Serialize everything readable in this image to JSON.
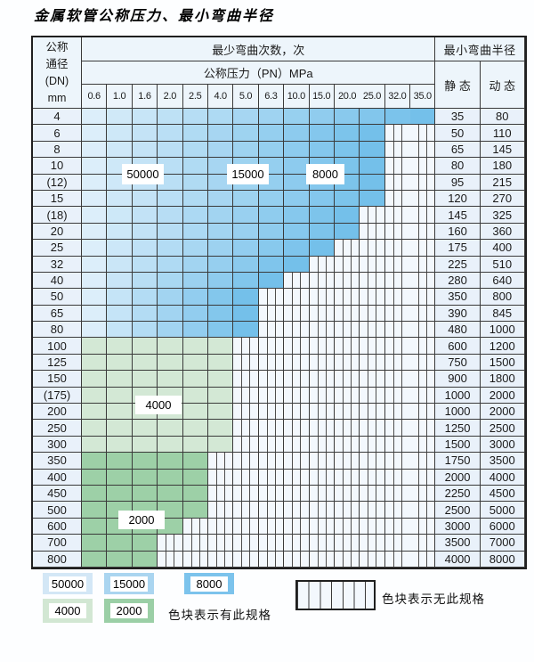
{
  "title": "金属软管公称压力、最小弯曲半径",
  "table": {
    "dn_header_lines": [
      "公称",
      "通径",
      "(DN)",
      "mm"
    ],
    "bend_cycles_header": "最少弯曲次数，次",
    "pressure_header": "公称压力（PN）MPa",
    "radius_header": "最小弯曲半径",
    "static_header": "静 态",
    "dynamic_header": "动 态",
    "pressure_columns": [
      "0.6",
      "1.0",
      "1.6",
      "2.0",
      "2.5",
      "4.0",
      "5.0",
      "6.3",
      "10.0",
      "15.0",
      "20.0",
      "25.0",
      "32.0",
      "35.0"
    ],
    "rows": [
      {
        "dn": "4",
        "band": "blue",
        "max_pn": "35.0",
        "colored_cols": 14,
        "static": "35",
        "dynamic": "80"
      },
      {
        "dn": "6",
        "band": "blue",
        "max_pn": "25.0",
        "colored_cols": 12,
        "static": "50",
        "dynamic": "110"
      },
      {
        "dn": "8",
        "band": "blue",
        "max_pn": "25.0",
        "colored_cols": 12,
        "static": "65",
        "dynamic": "145"
      },
      {
        "dn": "10",
        "band": "blue",
        "max_pn": "25.0",
        "colored_cols": 12,
        "static": "80",
        "dynamic": "180"
      },
      {
        "dn": "(12)",
        "band": "blue",
        "max_pn": "25.0",
        "colored_cols": 12,
        "static": "95",
        "dynamic": "215"
      },
      {
        "dn": "15",
        "band": "blue",
        "max_pn": "25.0",
        "colored_cols": 12,
        "static": "120",
        "dynamic": "270"
      },
      {
        "dn": "(18)",
        "band": "blue",
        "max_pn": "20.0",
        "colored_cols": 11,
        "static": "145",
        "dynamic": "325"
      },
      {
        "dn": "20",
        "band": "blue",
        "max_pn": "20.0",
        "colored_cols": 11,
        "static": "160",
        "dynamic": "360"
      },
      {
        "dn": "25",
        "band": "blue",
        "max_pn": "15.0",
        "colored_cols": 10,
        "static": "175",
        "dynamic": "400"
      },
      {
        "dn": "32",
        "band": "blue",
        "max_pn": "10.0",
        "colored_cols": 9,
        "static": "225",
        "dynamic": "510"
      },
      {
        "dn": "40",
        "band": "blue",
        "max_pn": "6.3",
        "colored_cols": 8,
        "static": "280",
        "dynamic": "640"
      },
      {
        "dn": "50",
        "band": "blue",
        "max_pn": "5.0",
        "colored_cols": 7,
        "static": "350",
        "dynamic": "800"
      },
      {
        "dn": "65",
        "band": "blue",
        "max_pn": "5.0",
        "colored_cols": 7,
        "static": "390",
        "dynamic": "845"
      },
      {
        "dn": "80",
        "band": "blue",
        "max_pn": "5.0",
        "colored_cols": 7,
        "static": "480",
        "dynamic": "1000"
      },
      {
        "dn": "100",
        "band": "green_4000",
        "max_pn": "4.0",
        "colored_cols": 6,
        "static": "600",
        "dynamic": "1200"
      },
      {
        "dn": "125",
        "band": "green_4000",
        "max_pn": "4.0",
        "colored_cols": 6,
        "static": "750",
        "dynamic": "1500"
      },
      {
        "dn": "150",
        "band": "green_4000",
        "max_pn": "4.0",
        "colored_cols": 6,
        "static": "900",
        "dynamic": "1800"
      },
      {
        "dn": "(175)",
        "band": "green_4000",
        "max_pn": "4.0",
        "colored_cols": 6,
        "static": "1000",
        "dynamic": "2000"
      },
      {
        "dn": "200",
        "band": "green_4000",
        "max_pn": "4.0",
        "colored_cols": 6,
        "static": "1000",
        "dynamic": "2000"
      },
      {
        "dn": "250",
        "band": "green_4000",
        "max_pn": "4.0",
        "colored_cols": 6,
        "static": "1250",
        "dynamic": "2500"
      },
      {
        "dn": "300",
        "band": "green_4000",
        "max_pn": "4.0",
        "colored_cols": 6,
        "static": "1500",
        "dynamic": "3000"
      },
      {
        "dn": "350",
        "band": "green_2000",
        "max_pn": "2.5",
        "colored_cols": 5,
        "static": "1750",
        "dynamic": "3500"
      },
      {
        "dn": "400",
        "band": "green_2000",
        "max_pn": "2.5",
        "colored_cols": 5,
        "static": "2000",
        "dynamic": "4000"
      },
      {
        "dn": "450",
        "band": "green_2000",
        "max_pn": "2.5",
        "colored_cols": 5,
        "static": "2250",
        "dynamic": "4500"
      },
      {
        "dn": "500",
        "band": "green_2000",
        "max_pn": "2.5",
        "colored_cols": 5,
        "static": "2500",
        "dynamic": "5000"
      },
      {
        "dn": "600",
        "band": "green_2000",
        "max_pn": "2.0",
        "colored_cols": 4,
        "static": "3000",
        "dynamic": "6000"
      },
      {
        "dn": "700",
        "band": "green_2000",
        "max_pn": "1.6",
        "colored_cols": 3,
        "static": "3500",
        "dynamic": "7000"
      },
      {
        "dn": "800",
        "band": "green_2000",
        "max_pn": "1.6",
        "colored_cols": 3,
        "static": "4000",
        "dynamic": "8000"
      }
    ]
  },
  "overlay_labels": [
    "50000",
    "15000",
    "8000",
    "4000",
    "2000"
  ],
  "legend": {
    "chips": [
      {
        "label": "50000",
        "color": "#d3e7f6"
      },
      {
        "label": "15000",
        "color": "#aad5f0"
      },
      {
        "label": "8000",
        "color": "#7cc3ec"
      },
      {
        "label": "4000",
        "color": "#d2e7d3"
      },
      {
        "label": "2000",
        "color": "#9bcfa6"
      }
    ],
    "has_spec_note": "色块表示有此规格",
    "no_spec_note": "色块表示无此规格"
  },
  "colors": {
    "blue_gradient_start": "#dceefa",
    "blue_gradient_end": "#74c0ea",
    "green_4000": "#d3e8d5",
    "green_2000": "#9dd0a7",
    "label_column_bg": "#e9f1fa",
    "header_bg": "#edf5fb",
    "no_spec_bg": "#f3f8fd",
    "grid_line": "#3a3a3a"
  }
}
